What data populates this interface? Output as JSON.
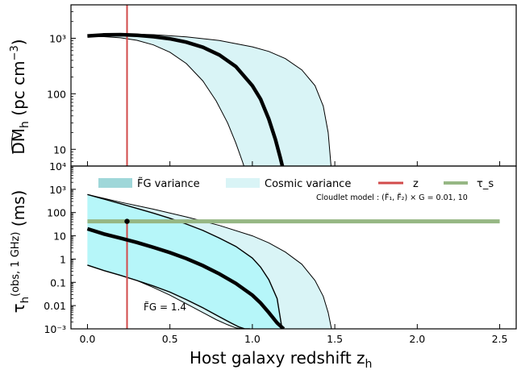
{
  "chart_data": [
    {
      "type": "area",
      "panel": "top",
      "ylabel": "D̂M_h  (pc cm⁻³)",
      "yscale": "log",
      "ylim": [
        5,
        4000
      ],
      "xlim": [
        -0.1,
        2.6
      ],
      "yticks": [
        {
          "value": 1000,
          "label": "10³"
        },
        {
          "value": 100,
          "label": "100"
        },
        {
          "value": 10,
          "label": "10"
        }
      ],
      "series": [
        {
          "role": "median",
          "x": [
            0,
            0.1,
            0.2,
            0.3,
            0.4,
            0.5,
            0.6,
            0.7,
            0.8,
            0.9,
            1.0,
            1.05,
            1.1,
            1.14,
            1.17,
            1.19
          ],
          "y": [
            1100,
            1150,
            1160,
            1130,
            1070,
            980,
            850,
            690,
            500,
            310,
            140,
            80,
            35,
            15,
            7,
            4
          ]
        },
        {
          "role": "cosmic_upper",
          "x": [
            0,
            0.2,
            0.4,
            0.6,
            0.8,
            1.0,
            1.1,
            1.2,
            1.3,
            1.38,
            1.43,
            1.46,
            1.48
          ],
          "y": [
            1150,
            1210,
            1160,
            1060,
            910,
            700,
            580,
            430,
            270,
            140,
            60,
            20,
            4
          ]
        },
        {
          "role": "cosmic_lower",
          "x": [
            0,
            0.1,
            0.2,
            0.3,
            0.4,
            0.5,
            0.6,
            0.7,
            0.78,
            0.85,
            0.9,
            0.94,
            0.96
          ],
          "y": [
            1070,
            1070,
            1020,
            920,
            760,
            560,
            350,
            170,
            75,
            30,
            13,
            6,
            4
          ]
        }
      ],
      "vline": {
        "x": 0.24,
        "label": "z",
        "color": "#d24b4b"
      }
    },
    {
      "type": "area",
      "panel": "bottom",
      "ylabel": "τ̂_h^(obs, 1 GHz)  (ms)",
      "xlabel": "Host galaxy redshift  z_h",
      "yscale": "log",
      "ylim": [
        0.001,
        10000
      ],
      "xlim": [
        -0.1,
        2.6
      ],
      "xticks": [
        0.0,
        0.5,
        1.0,
        1.5,
        2.0,
        2.5
      ],
      "xtick_labels": [
        "0.0",
        "0.5",
        "1.0",
        "1.5",
        "2.0",
        "2.5"
      ],
      "yticks": [
        {
          "value": 10000,
          "label": "10⁴"
        },
        {
          "value": 1000,
          "label": "10³"
        },
        {
          "value": 100,
          "label": "100"
        },
        {
          "value": 10,
          "label": "10"
        },
        {
          "value": 1,
          "label": "1"
        },
        {
          "value": 0.1,
          "label": "0.1"
        },
        {
          "value": 0.01,
          "label": "0.01"
        },
        {
          "value": 0.001,
          "label": "10⁻³"
        }
      ],
      "series": [
        {
          "role": "median",
          "x": [
            0,
            0.1,
            0.2,
            0.3,
            0.4,
            0.5,
            0.6,
            0.7,
            0.8,
            0.9,
            1.0,
            1.05,
            1.1,
            1.15,
            1.19
          ],
          "y": [
            20,
            12,
            8,
            5.2,
            3.2,
            1.9,
            1.05,
            0.52,
            0.23,
            0.09,
            0.028,
            0.013,
            0.005,
            0.0018,
            0.001
          ]
        },
        {
          "role": "fg_upper",
          "x": [
            0,
            0.1,
            0.2,
            0.3,
            0.4,
            0.5,
            0.6,
            0.7,
            0.8,
            0.9,
            1.0,
            1.05,
            1.1,
            1.15,
            1.18
          ],
          "y": [
            600,
            380,
            240,
            150,
            95,
            57,
            32,
            17,
            8,
            3.5,
            1.1,
            0.45,
            0.13,
            0.02,
            0.001
          ]
        },
        {
          "role": "fg_lower",
          "x": [
            0,
            0.1,
            0.2,
            0.3,
            0.4,
            0.5,
            0.6,
            0.7,
            0.8,
            0.87,
            0.92,
            0.955,
            0.985
          ],
          "y": [
            0.55,
            0.32,
            0.2,
            0.12,
            0.07,
            0.038,
            0.018,
            0.008,
            0.0033,
            0.0018,
            0.0012,
            0.001,
            0.001
          ]
        },
        {
          "role": "cosmic_upper",
          "x": [
            0,
            0.2,
            0.4,
            0.6,
            0.8,
            1.0,
            1.1,
            1.2,
            1.3,
            1.38,
            1.43,
            1.46,
            1.48
          ],
          "y": [
            600,
            280,
            140,
            65,
            28,
            10,
            5,
            2,
            0.6,
            0.12,
            0.025,
            0.005,
            0.001
          ]
        },
        {
          "role": "cosmic_lower",
          "x": [
            0,
            0.1,
            0.2,
            0.3,
            0.4,
            0.5,
            0.6,
            0.7,
            0.78,
            0.85,
            0.9,
            0.94
          ],
          "y": [
            0.55,
            0.32,
            0.2,
            0.12,
            0.06,
            0.028,
            0.012,
            0.005,
            0.0025,
            0.0015,
            0.0011,
            0.001
          ]
        }
      ],
      "hband": {
        "y": 42,
        "label": "τ_s",
        "color": "#96b784"
      },
      "vline": {
        "x": 0.24,
        "label": "z",
        "color": "#d24b4b"
      },
      "marker": {
        "x": 0.24,
        "y": 42
      },
      "annotation": "F̃G = 1.4",
      "cloudlet_label": "Cloudlet model :   (F̃₁, F̃₂) × G = 0.01, 10",
      "legend": [
        {
          "label": "F̃G variance",
          "color": "#9fd7d9"
        },
        {
          "label": "Cosmic variance",
          "color": "#d9f4f6"
        },
        {
          "label": "z",
          "color": "#d24b4b"
        },
        {
          "label": "τ_s",
          "color": "#96b784"
        }
      ]
    }
  ]
}
